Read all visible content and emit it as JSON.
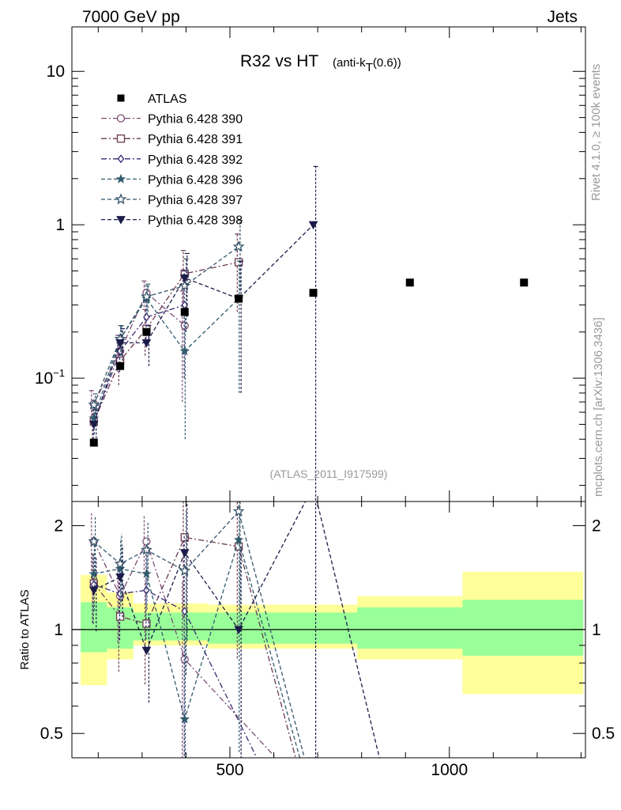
{
  "header": {
    "left": "7000 GeV pp",
    "right": "Jets"
  },
  "side_labels": {
    "rivet": "Rivet 4.1.0, ≥ 100k events",
    "source": "mcplots.cern.ch [arXiv:1306.3436]"
  },
  "chart_data": {
    "type": "scatter",
    "title": "R32 vs HT",
    "title_sub": "(anti-k",
    "title_sub_index": "T",
    "title_sub_end": "(0.6))",
    "analysis_id": "(ATLAS_2011_I917599)",
    "xlabel": "",
    "xlim": [
      140,
      1310
    ],
    "x_ticks": [
      500,
      1000
    ],
    "x_tick_labels": [
      "500",
      "1000"
    ],
    "main": {
      "yscale": "log",
      "ylim": [
        0.0157,
        19.5
      ],
      "y_ticks": [
        0.1,
        1,
        10
      ],
      "y_tick_labels": [
        [
          "10",
          "−1"
        ],
        [
          "1",
          ""
        ],
        [
          "10",
          ""
        ]
      ]
    },
    "ratio": {
      "ylabel": "Ratio to ATLAS",
      "yscale": "log",
      "ylim": [
        0.425,
        2.35
      ],
      "y_ticks": [
        0.5,
        1,
        2
      ],
      "y_tick_labels": [
        "0.5",
        "1",
        "2"
      ],
      "bands": [
        {
          "x0": 160,
          "x1": 220,
          "yellow": [
            0.69,
            1.44
          ],
          "green": [
            0.86,
            1.2
          ]
        },
        {
          "x0": 220,
          "x1": 280,
          "yellow": [
            0.82,
            1.28
          ],
          "green": [
            0.88,
            1.16
          ]
        },
        {
          "x0": 280,
          "x1": 450,
          "yellow": [
            0.9,
            1.19
          ],
          "green": [
            0.93,
            1.12
          ]
        },
        {
          "x0": 450,
          "x1": 790,
          "yellow": [
            0.88,
            1.18
          ],
          "green": [
            0.91,
            1.12
          ]
        },
        {
          "x0": 790,
          "x1": 1030,
          "yellow": [
            0.82,
            1.25
          ],
          "green": [
            0.88,
            1.16
          ]
        },
        {
          "x0": 1030,
          "x1": 1305,
          "yellow": [
            0.65,
            1.47
          ],
          "green": [
            0.84,
            1.22
          ]
        }
      ]
    },
    "data_series": {
      "name": "ATLAS",
      "color": "#000000",
      "x": [
        190,
        250,
        310,
        397,
        520,
        690,
        910,
        1170
      ],
      "y": [
        0.038,
        0.12,
        0.2,
        0.27,
        0.33,
        0.36,
        0.42,
        0.42
      ]
    },
    "series": [
      {
        "name": "Pythia 6.428 390",
        "color": "#7c4d74",
        "marker": "circle",
        "dash": "7 3 2 3",
        "x": [
          190,
          250,
          310,
          397
        ],
        "y": [
          0.068,
          0.15,
          0.36,
          0.22
        ],
        "err": [
          0.015,
          0.04,
          0.07,
          0.15
        ],
        "ratio": [
          1.8,
          1.25,
          1.8,
          0.82
        ],
        "ratio_end": [
          640,
          0.38
        ]
      },
      {
        "name": "Pythia 6.428 391",
        "color": "#6a3a52",
        "marker": "square",
        "dash": "7 3 2 3",
        "x": [
          190,
          250,
          310,
          397,
          520
        ],
        "y": [
          0.052,
          0.13,
          0.21,
          0.48,
          0.57
        ],
        "err": [
          0.012,
          0.04,
          0.07,
          0.2,
          0.3
        ],
        "ratio": [
          1.36,
          1.09,
          1.04,
          1.85,
          1.74
        ],
        "ratio_end": [
          660,
          0.38
        ]
      },
      {
        "name": "Pythia 6.428 392",
        "color": "#3b2a74",
        "marker": "diamond",
        "dash": "7 3 2 3",
        "x": [
          190,
          250,
          310,
          397
        ],
        "y": [
          0.052,
          0.15,
          0.25,
          0.3
        ],
        "err": [
          0.012,
          0.04,
          0.07,
          0.2
        ],
        "ratio": [
          1.35,
          1.27,
          1.3,
          1.13
        ],
        "ratio_end": [
          580,
          0.38
        ]
      },
      {
        "name": "Pythia 6.428 396",
        "color": "#315c6e",
        "marker": "star",
        "dash": "5 3",
        "x": [
          190,
          250,
          310,
          397,
          520
        ],
        "y": [
          0.055,
          0.18,
          0.33,
          0.15,
          0.33
        ],
        "err": [
          0.012,
          0.04,
          0.07,
          0.11,
          0.25
        ],
        "ratio": [
          1.45,
          1.5,
          1.45,
          0.55,
          1.82
        ],
        "ratio_end": [
          670,
          0.38
        ]
      },
      {
        "name": "Pythia 6.428 397",
        "color": "#35556a",
        "marker": "star-open",
        "dash": "5 3",
        "x": [
          190,
          250,
          310,
          397,
          520
        ],
        "y": [
          0.067,
          0.18,
          0.34,
          0.4,
          0.72
        ],
        "err": [
          0.012,
          0.04,
          0.07,
          0.2,
          0.35
        ],
        "ratio": [
          1.8,
          1.55,
          1.7,
          1.48,
          2.2
        ],
        "ratio_end": [
          680,
          0.38
        ]
      },
      {
        "name": "Pythia 6.428 398",
        "color": "#1c1c4a",
        "marker": "triangle-down",
        "dash": "5 3",
        "x": [
          190,
          250,
          310,
          397,
          520,
          690
        ],
        "y": [
          0.05,
          0.17,
          0.17,
          0.45,
          0.33,
          1.0
        ],
        "err": [
          0.012,
          0.04,
          0.05,
          0.2,
          0.25,
          1.4
        ],
        "ratio": [
          1.3,
          1.42,
          0.87,
          1.67,
          1.0,
          2.6
        ],
        "ratio_end": [
          850,
          0.38
        ]
      }
    ]
  }
}
